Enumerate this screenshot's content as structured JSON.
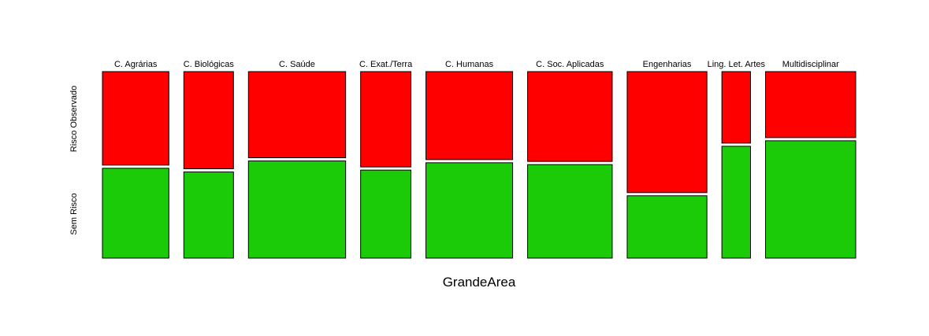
{
  "chart_data": {
    "type": "mosaic",
    "xlabel": "GrandeArea",
    "categories": [
      "C. Agrárias",
      "C. Biológicas",
      "C. Saúde",
      "C. Exat./Terra",
      "C. Humanas",
      "C. Soc. Aplicadas",
      "Engenharias",
      "Ling. Let. Artes",
      "Multidisciplinar"
    ],
    "category_shares": [
      0.095,
      0.071,
      0.139,
      0.072,
      0.124,
      0.121,
      0.114,
      0.041,
      0.129
    ],
    "rows": [
      "Risco Observado",
      "Sem Risco"
    ],
    "row_colors": [
      "#ff0000",
      "#1ccb07"
    ],
    "values": {
      "Risco Observado": [
        0.51,
        0.53,
        0.47,
        0.52,
        0.48,
        0.49,
        0.66,
        0.39,
        0.36
      ],
      "Sem Risco": [
        0.49,
        0.47,
        0.53,
        0.48,
        0.52,
        0.51,
        0.34,
        0.61,
        0.64
      ]
    },
    "grid": false
  }
}
